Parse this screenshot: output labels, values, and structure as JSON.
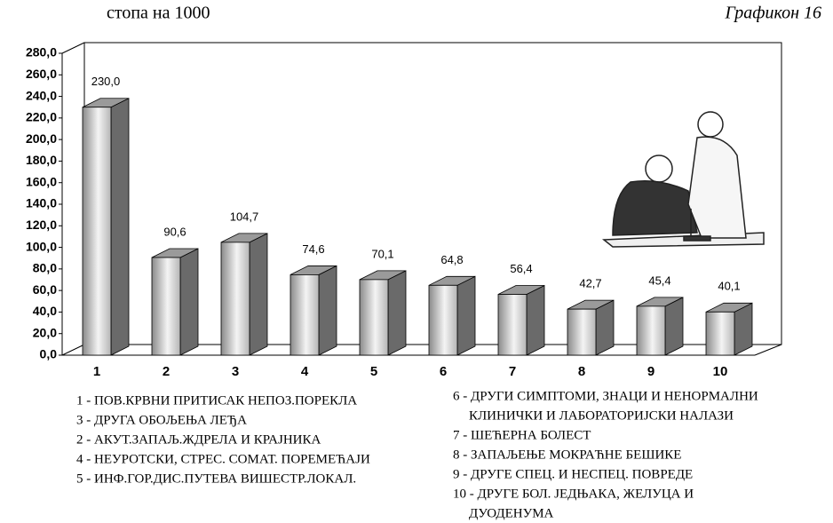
{
  "chart_data": {
    "type": "bar3d",
    "subtitle": "стопа на 1000",
    "title": "Графикон 16",
    "categories": [
      "1",
      "2",
      "3",
      "4",
      "5",
      "6",
      "7",
      "8",
      "9",
      "10"
    ],
    "values": [
      230.0,
      90.6,
      104.7,
      74.6,
      70.1,
      64.8,
      56.4,
      42.7,
      45.4,
      40.1
    ],
    "value_labels": [
      "230,0",
      "90,6",
      "104,7",
      "74,6",
      "70,1",
      "64,8",
      "56,4",
      "42,7",
      "45,4",
      "40,1"
    ],
    "ylim": [
      0,
      280
    ],
    "yticks": [
      {
        "value": 0,
        "label": "0,0"
      },
      {
        "value": 20,
        "label": "20,0"
      },
      {
        "value": 40,
        "label": "40,0"
      },
      {
        "value": 60,
        "label": "60,0"
      },
      {
        "value": 80,
        "label": "80,0"
      },
      {
        "value": 100,
        "label": "100,0"
      },
      {
        "value": 120,
        "label": "120,0"
      },
      {
        "value": 140,
        "label": "140,0"
      },
      {
        "value": 160,
        "label": "160,0"
      },
      {
        "value": 180,
        "label": "180,0"
      },
      {
        "value": 200,
        "label": "200,0"
      },
      {
        "value": 220,
        "label": "220,0"
      },
      {
        "value": 240,
        "label": "240,0"
      },
      {
        "value": 260,
        "label": "260,0"
      },
      {
        "value": 280,
        "label": "280,0"
      }
    ],
    "color": "#9a9a9a",
    "notes_left": [
      [
        "1 - ПОВ.КРВНИ ПРИТИСАК НЕПОЗ.ПОРЕКЛА"
      ],
      [
        "3 - ДРУГА ОБОЉЕЊА ЛЕЂА"
      ],
      [
        "2 - АКУТ.ЗАПАЉ.ЖДРЕЛА И КРАЈНИКА"
      ],
      [
        "4 - НЕУРОТСКИ, СТРЕС. СОМАТ. ПОРЕМЕЋАЈИ"
      ],
      [
        "5 - ИНФ.ГОР.ДИС.ПУТЕВА ВИШЕСТР.ЛОКАЛ."
      ]
    ],
    "notes_right": [
      [
        "6 - ДРУГИ СИМПТОМИ, ЗНАЦИ И НЕНОРМАЛНИ",
        "КЛИНИЧКИ И ЛАБОРАТОРИЈСКИ НАЛАЗИ"
      ],
      [
        "7 - ШЕЋЕРНА БОЛЕСТ"
      ],
      [
        "8 -  ЗАПАЉЕЊЕ МОКРАЋНЕ БЕШИКЕ"
      ],
      [
        "9 - ДРУГЕ СПЕЦ. И НЕСПЕЦ. ПОВРЕДЕ"
      ],
      [
        "10 - ДРУГЕ БОЛ. ЈЕДЊАКА, ЖЕЛУЦА И",
        "ДУОДЕНУМА"
      ]
    ]
  }
}
